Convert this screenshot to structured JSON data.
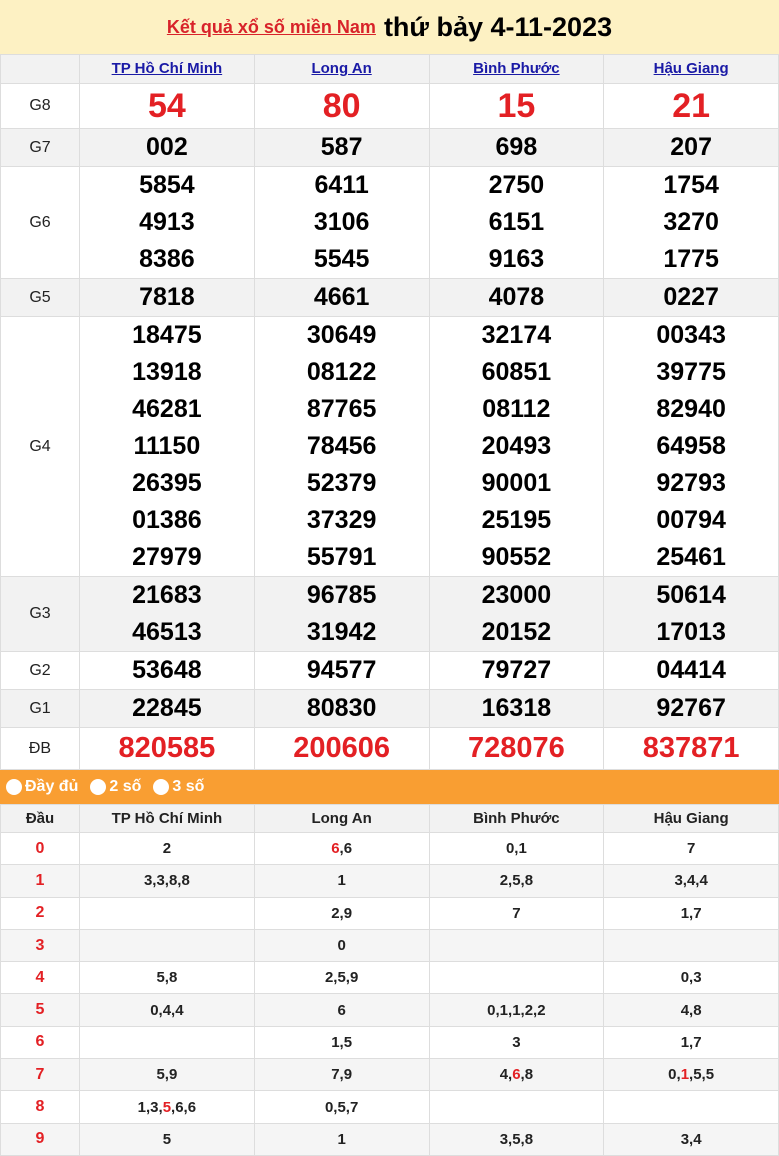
{
  "header": {
    "link": "Kết quả xổ số miền Nam",
    "date": "thứ bảy 4-11-2023"
  },
  "provinces": [
    "TP Hồ Chí Minh",
    "Long An",
    "Bình Phước",
    "Hậu Giang"
  ],
  "prizes": [
    {
      "label": "G8",
      "style": "big",
      "values": [
        [
          "54"
        ],
        [
          "80"
        ],
        [
          "15"
        ],
        [
          "21"
        ]
      ]
    },
    {
      "label": "G7",
      "values": [
        [
          "002"
        ],
        [
          "587"
        ],
        [
          "698"
        ],
        [
          "207"
        ]
      ]
    },
    {
      "label": "G6",
      "values": [
        [
          "5854",
          "4913",
          "8386"
        ],
        [
          "6411",
          "3106",
          "5545"
        ],
        [
          "2750",
          "6151",
          "9163"
        ],
        [
          "1754",
          "3270",
          "1775"
        ]
      ]
    },
    {
      "label": "G5",
      "values": [
        [
          "7818"
        ],
        [
          "4661"
        ],
        [
          "4078"
        ],
        [
          "0227"
        ]
      ]
    },
    {
      "label": "G4",
      "values": [
        [
          "18475",
          "13918",
          "46281",
          "11150",
          "26395",
          "01386",
          "27979"
        ],
        [
          "30649",
          "08122",
          "87765",
          "78456",
          "52379",
          "37329",
          "55791"
        ],
        [
          "32174",
          "60851",
          "08112",
          "20493",
          "90001",
          "25195",
          "90552"
        ],
        [
          "00343",
          "39775",
          "82940",
          "64958",
          "92793",
          "00794",
          "25461"
        ]
      ]
    },
    {
      "label": "G3",
      "values": [
        [
          "21683",
          "46513"
        ],
        [
          "96785",
          "31942"
        ],
        [
          "23000",
          "20152"
        ],
        [
          "50614",
          "17013"
        ]
      ]
    },
    {
      "label": "G2",
      "values": [
        [
          "53648"
        ],
        [
          "94577"
        ],
        [
          "79727"
        ],
        [
          "04414"
        ]
      ]
    },
    {
      "label": "G1",
      "values": [
        [
          "22845"
        ],
        [
          "80830"
        ],
        [
          "16318"
        ],
        [
          "92767"
        ]
      ]
    },
    {
      "label": "ĐB",
      "style": "db",
      "values": [
        [
          "820585"
        ],
        [
          "200606"
        ],
        [
          "728076"
        ],
        [
          "837871"
        ]
      ]
    }
  ],
  "options": [
    "Đầy đủ",
    "2 số",
    "3 số"
  ],
  "loto": {
    "head_label": "Đầu",
    "rows": [
      {
        "d": "0",
        "cells": [
          {
            "t": "2"
          },
          {
            "pre": "",
            "red": "6",
            "post": ",6"
          },
          {
            "t": "0,1"
          },
          {
            "t": "7"
          }
        ]
      },
      {
        "d": "1",
        "cells": [
          {
            "t": "3,3,8,8"
          },
          {
            "t": "1"
          },
          {
            "t": "2,5,8"
          },
          {
            "t": "3,4,4"
          }
        ]
      },
      {
        "d": "2",
        "cells": [
          {
            "t": ""
          },
          {
            "t": "2,9"
          },
          {
            "t": "7"
          },
          {
            "t": "1,7"
          }
        ]
      },
      {
        "d": "3",
        "cells": [
          {
            "t": ""
          },
          {
            "t": "0"
          },
          {
            "t": ""
          },
          {
            "t": ""
          }
        ]
      },
      {
        "d": "4",
        "cells": [
          {
            "t": "5,8"
          },
          {
            "t": "2,5,9"
          },
          {
            "t": ""
          },
          {
            "t": "0,3"
          }
        ]
      },
      {
        "d": "5",
        "cells": [
          {
            "t": "0,4,4"
          },
          {
            "t": "6"
          },
          {
            "t": "0,1,1,2,2"
          },
          {
            "t": "4,8"
          }
        ]
      },
      {
        "d": "6",
        "cells": [
          {
            "t": ""
          },
          {
            "t": "1,5"
          },
          {
            "t": "3"
          },
          {
            "t": "1,7"
          }
        ]
      },
      {
        "d": "7",
        "cells": [
          {
            "t": "5,9"
          },
          {
            "t": "7,9"
          },
          {
            "pre": "4,",
            "red": "6",
            "post": ",8"
          },
          {
            "pre": "0,",
            "red": "1",
            "post": ",5,5"
          }
        ]
      },
      {
        "d": "8",
        "cells": [
          {
            "pre": "1,3,",
            "red": "5",
            "post": ",6,6"
          },
          {
            "t": "0,5,7"
          },
          {
            "t": ""
          },
          {
            "t": ""
          }
        ]
      },
      {
        "d": "9",
        "cells": [
          {
            "t": "5"
          },
          {
            "t": "1"
          },
          {
            "t": "3,5,8"
          },
          {
            "t": "3,4"
          }
        ]
      }
    ]
  },
  "colors": {
    "accent_red": "#e32024",
    "orange": "#f99e32",
    "header_bg": "#fdf1c3",
    "link_blue": "#1a1aa6"
  }
}
